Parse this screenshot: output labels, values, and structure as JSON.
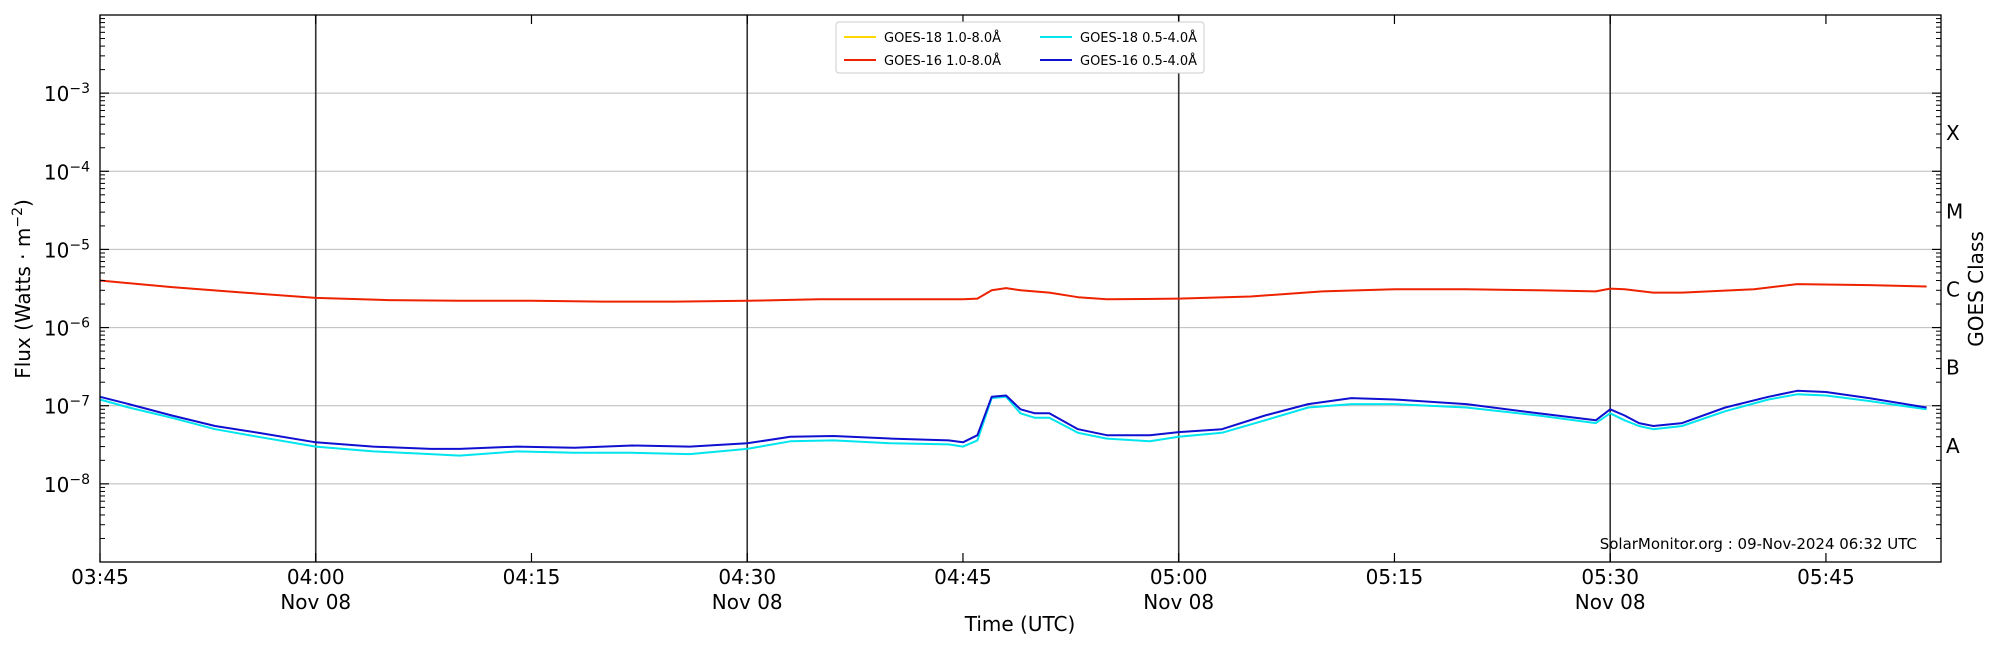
{
  "chart_data": {
    "type": "line",
    "xlabel": "Time (UTC)",
    "ylabel_prefix": "Flux (Watts · m",
    "ylabel_sup": "−2",
    "ylabel_suffix": ")",
    "right_label": "GOES Class",
    "y_scale": "log",
    "ylim": [
      1e-09,
      0.01
    ],
    "xlim": [
      "2024-11-08T03:45:00Z",
      "2024-11-08T05:53:00Z"
    ],
    "x_ticks": [
      {
        "t": "2024-11-08T03:45:00Z",
        "label": "03:45",
        "sub": ""
      },
      {
        "t": "2024-11-08T04:00:00Z",
        "label": "04:00",
        "sub": "Nov 08"
      },
      {
        "t": "2024-11-08T04:15:00Z",
        "label": "04:15",
        "sub": ""
      },
      {
        "t": "2024-11-08T04:30:00Z",
        "label": "04:30",
        "sub": "Nov 08"
      },
      {
        "t": "2024-11-08T04:45:00Z",
        "label": "04:45",
        "sub": ""
      },
      {
        "t": "2024-11-08T05:00:00Z",
        "label": "05:00",
        "sub": "Nov 08"
      },
      {
        "t": "2024-11-08T05:15:00Z",
        "label": "05:15",
        "sub": ""
      },
      {
        "t": "2024-11-08T05:30:00Z",
        "label": "05:30",
        "sub": "Nov 08"
      },
      {
        "t": "2024-11-08T05:45:00Z",
        "label": "05:45",
        "sub": ""
      }
    ],
    "y_ticks": [
      {
        "value": 1e-08,
        "base": "10",
        "exp": "−8"
      },
      {
        "value": 1e-07,
        "base": "10",
        "exp": "−7"
      },
      {
        "value": 1e-06,
        "base": "10",
        "exp": "−6"
      },
      {
        "value": 1e-05,
        "base": "10",
        "exp": "−5"
      },
      {
        "value": 0.0001,
        "base": "10",
        "exp": "−4"
      },
      {
        "value": 0.001,
        "base": "10",
        "exp": "−3"
      }
    ],
    "day_lines": [
      "2024-11-08T04:00:00Z",
      "2024-11-08T04:30:00Z",
      "2024-11-08T05:00:00Z",
      "2024-11-08T05:30:00Z"
    ],
    "goes_classes": [
      {
        "label": "A",
        "value": 3.16e-08
      },
      {
        "label": "B",
        "value": 3.16e-07
      },
      {
        "label": "C",
        "value": 3.16e-06
      },
      {
        "label": "M",
        "value": 3.16e-05
      },
      {
        "label": "X",
        "value": 0.000316
      }
    ],
    "credit": "SolarMonitor.org : 09-Nov-2024 06:32 UTC",
    "grid": true,
    "legend_position": "top-center",
    "series": [
      {
        "name": "GOES-18 1.0-8.0Å",
        "color": "#ffd700",
        "x": [],
        "y": []
      },
      {
        "name": "GOES-16 1.0-8.0Å",
        "color": "#ee2200",
        "x": [
          "2024-11-08T03:45:00Z",
          "2024-11-08T03:50:00Z",
          "2024-11-08T03:55:00Z",
          "2024-11-08T04:00:00Z",
          "2024-11-08T04:05:00Z",
          "2024-11-08T04:10:00Z",
          "2024-11-08T04:15:00Z",
          "2024-11-08T04:20:00Z",
          "2024-11-08T04:25:00Z",
          "2024-11-08T04:30:00Z",
          "2024-11-08T04:35:00Z",
          "2024-11-08T04:40:00Z",
          "2024-11-08T04:45:00Z",
          "2024-11-08T04:46:00Z",
          "2024-11-08T04:47:00Z",
          "2024-11-08T04:48:00Z",
          "2024-11-08T04:49:00Z",
          "2024-11-08T04:51:00Z",
          "2024-11-08T04:53:00Z",
          "2024-11-08T04:55:00Z",
          "2024-11-08T05:00:00Z",
          "2024-11-08T05:05:00Z",
          "2024-11-08T05:10:00Z",
          "2024-11-08T05:15:00Z",
          "2024-11-08T05:20:00Z",
          "2024-11-08T05:25:00Z",
          "2024-11-08T05:29:00Z",
          "2024-11-08T05:30:00Z",
          "2024-11-08T05:31:00Z",
          "2024-11-08T05:33:00Z",
          "2024-11-08T05:35:00Z",
          "2024-11-08T05:40:00Z",
          "2024-11-08T05:43:00Z",
          "2024-11-08T05:48:00Z",
          "2024-11-08T05:52:00Z"
        ],
        "y": [
          4e-06,
          3.3e-06,
          2.8e-06,
          2.4e-06,
          2.25e-06,
          2.2e-06,
          2.2e-06,
          2.15e-06,
          2.15e-06,
          2.2e-06,
          2.3e-06,
          2.3e-06,
          2.3e-06,
          2.35e-06,
          3e-06,
          3.2e-06,
          3e-06,
          2.8e-06,
          2.45e-06,
          2.3e-06,
          2.35e-06,
          2.5e-06,
          2.9e-06,
          3.1e-06,
          3.1e-06,
          3e-06,
          2.9e-06,
          3.15e-06,
          3.1e-06,
          2.8e-06,
          2.8e-06,
          3.1e-06,
          3.6e-06,
          3.5e-06,
          3.35e-06
        ]
      },
      {
        "name": "GOES-18 0.5-4.0Å",
        "color": "#00e5ee",
        "x": [
          "2024-11-08T03:45:00Z",
          "2024-11-08T03:47:00Z",
          "2024-11-08T03:50:00Z",
          "2024-11-08T03:53:00Z",
          "2024-11-08T03:56:00Z",
          "2024-11-08T04:00:00Z",
          "2024-11-08T04:04:00Z",
          "2024-11-08T04:08:00Z",
          "2024-11-08T04:10:00Z",
          "2024-11-08T04:14:00Z",
          "2024-11-08T04:18:00Z",
          "2024-11-08T04:22:00Z",
          "2024-11-08T04:26:00Z",
          "2024-11-08T04:30:00Z",
          "2024-11-08T04:33:00Z",
          "2024-11-08T04:36:00Z",
          "2024-11-08T04:40:00Z",
          "2024-11-08T04:44:00Z",
          "2024-11-08T04:45:00Z",
          "2024-11-08T04:46:00Z",
          "2024-11-08T04:47:00Z",
          "2024-11-08T04:48:00Z",
          "2024-11-08T04:49:00Z",
          "2024-11-08T04:50:00Z",
          "2024-11-08T04:51:00Z",
          "2024-11-08T04:53:00Z",
          "2024-11-08T04:55:00Z",
          "2024-11-08T04:58:00Z",
          "2024-11-08T05:00:00Z",
          "2024-11-08T05:03:00Z",
          "2024-11-08T05:06:00Z",
          "2024-11-08T05:09:00Z",
          "2024-11-08T05:12:00Z",
          "2024-11-08T05:15:00Z",
          "2024-11-08T05:20:00Z",
          "2024-11-08T05:25:00Z",
          "2024-11-08T05:29:00Z",
          "2024-11-08T05:30:00Z",
          "2024-11-08T05:31:00Z",
          "2024-11-08T05:32:00Z",
          "2024-11-08T05:33:00Z",
          "2024-11-08T05:35:00Z",
          "2024-11-08T05:38:00Z",
          "2024-11-08T05:41:00Z",
          "2024-11-08T05:43:00Z",
          "2024-11-08T05:45:00Z",
          "2024-11-08T05:48:00Z",
          "2024-11-08T05:52:00Z"
        ],
        "y": [
          1.2e-07,
          9.5e-08,
          7e-08,
          5e-08,
          4e-08,
          3e-08,
          2.6e-08,
          2.4e-08,
          2.3e-08,
          2.6e-08,
          2.5e-08,
          2.5e-08,
          2.4e-08,
          2.8e-08,
          3.5e-08,
          3.6e-08,
          3.3e-08,
          3.2e-08,
          3e-08,
          3.6e-08,
          1.25e-07,
          1.3e-07,
          8e-08,
          7e-08,
          7e-08,
          4.5e-08,
          3.8e-08,
          3.5e-08,
          4e-08,
          4.5e-08,
          6.5e-08,
          9.5e-08,
          1.05e-07,
          1.05e-07,
          9.5e-08,
          7.5e-08,
          6e-08,
          8e-08,
          6.5e-08,
          5.5e-08,
          5e-08,
          5.5e-08,
          8.5e-08,
          1.2e-07,
          1.4e-07,
          1.35e-07,
          1.15e-07,
          9e-08
        ]
      },
      {
        "name": "GOES-16 0.5-4.0Å",
        "color": "#1010d0",
        "x": [
          "2024-11-08T03:45:00Z",
          "2024-11-08T03:47:00Z",
          "2024-11-08T03:50:00Z",
          "2024-11-08T03:53:00Z",
          "2024-11-08T03:56:00Z",
          "2024-11-08T04:00:00Z",
          "2024-11-08T04:04:00Z",
          "2024-11-08T04:08:00Z",
          "2024-11-08T04:10:00Z",
          "2024-11-08T04:14:00Z",
          "2024-11-08T04:18:00Z",
          "2024-11-08T04:22:00Z",
          "2024-11-08T04:26:00Z",
          "2024-11-08T04:30:00Z",
          "2024-11-08T04:33:00Z",
          "2024-11-08T04:36:00Z",
          "2024-11-08T04:40:00Z",
          "2024-11-08T04:44:00Z",
          "2024-11-08T04:45:00Z",
          "2024-11-08T04:46:00Z",
          "2024-11-08T04:47:00Z",
          "2024-11-08T04:48:00Z",
          "2024-11-08T04:49:00Z",
          "2024-11-08T04:50:00Z",
          "2024-11-08T04:51:00Z",
          "2024-11-08T04:53:00Z",
          "2024-11-08T04:55:00Z",
          "2024-11-08T04:58:00Z",
          "2024-11-08T05:00:00Z",
          "2024-11-08T05:03:00Z",
          "2024-11-08T05:06:00Z",
          "2024-11-08T05:09:00Z",
          "2024-11-08T05:12:00Z",
          "2024-11-08T05:15:00Z",
          "2024-11-08T05:20:00Z",
          "2024-11-08T05:25:00Z",
          "2024-11-08T05:29:00Z",
          "2024-11-08T05:30:00Z",
          "2024-11-08T05:31:00Z",
          "2024-11-08T05:32:00Z",
          "2024-11-08T05:33:00Z",
          "2024-11-08T05:35:00Z",
          "2024-11-08T05:38:00Z",
          "2024-11-08T05:41:00Z",
          "2024-11-08T05:43:00Z",
          "2024-11-08T05:45:00Z",
          "2024-11-08T05:48:00Z",
          "2024-11-08T05:52:00Z"
        ],
        "y": [
          1.3e-07,
          1.05e-07,
          7.5e-08,
          5.5e-08,
          4.5e-08,
          3.4e-08,
          3e-08,
          2.8e-08,
          2.8e-08,
          3e-08,
          2.9e-08,
          3.1e-08,
          3e-08,
          3.3e-08,
          4e-08,
          4.1e-08,
          3.8e-08,
          3.6e-08,
          3.4e-08,
          4.2e-08,
          1.3e-07,
          1.35e-07,
          9e-08,
          8e-08,
          8e-08,
          5e-08,
          4.2e-08,
          4.2e-08,
          4.6e-08,
          5e-08,
          7.5e-08,
          1.05e-07,
          1.25e-07,
          1.2e-07,
          1.05e-07,
          8e-08,
          6.5e-08,
          9e-08,
          7.5e-08,
          6e-08,
          5.5e-08,
          6e-08,
          9.5e-08,
          1.3e-07,
          1.55e-07,
          1.5e-07,
          1.25e-07,
          9.5e-08
        ]
      }
    ]
  }
}
